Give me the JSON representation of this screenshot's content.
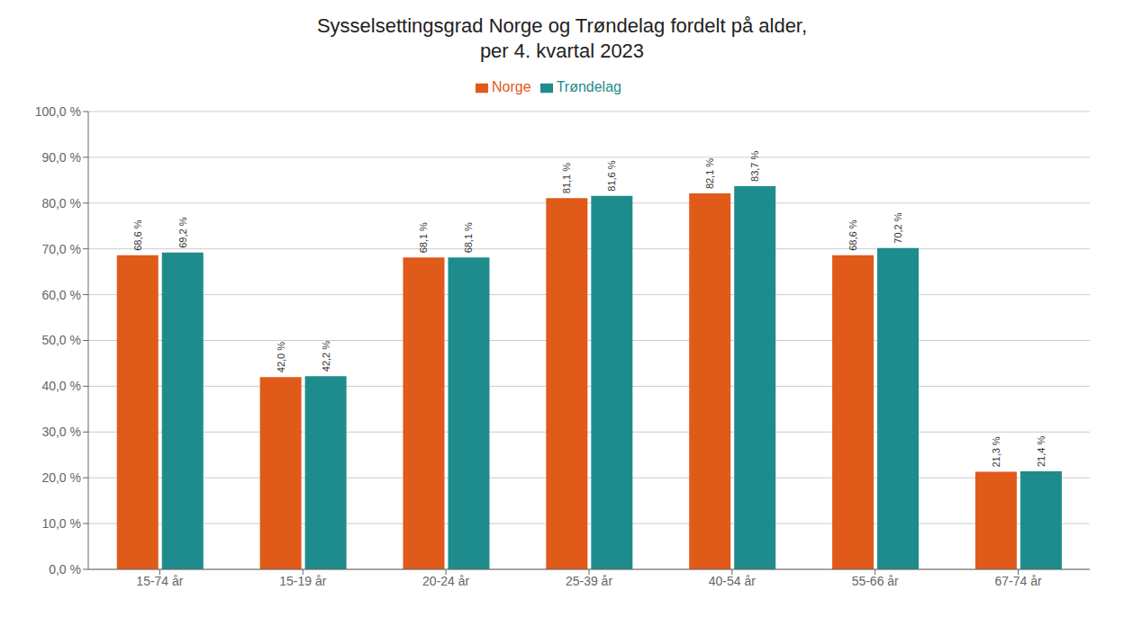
{
  "chart_data": {
    "type": "bar",
    "title": "Sysselsettingsgrad Norge og Trøndelag fordelt på alder,\nper 4. kvartal 2023",
    "categories": [
      "15-74 år",
      "15-19 år",
      "20-24 år",
      "25-39 år",
      "40-54 år",
      "55-66 år",
      "67-74 år"
    ],
    "series": [
      {
        "name": "Norge",
        "color": "#E05A1A",
        "values": [
          68.6,
          42.0,
          68.1,
          81.1,
          82.1,
          68.6,
          21.3
        ],
        "value_labels": [
          "68,6 %",
          "42,0 %",
          "68,1 %",
          "81,1 %",
          "82,1 %",
          "68,6 %",
          "21,3 %"
        ]
      },
      {
        "name": "Trøndelag",
        "color": "#1E8C8C",
        "values": [
          69.2,
          42.2,
          68.1,
          81.6,
          83.7,
          70.2,
          21.4
        ],
        "value_labels": [
          "69,2 %",
          "42,2 %",
          "68,1 %",
          "81,6 %",
          "83,7 %",
          "70,2 %",
          "21,4 %"
        ]
      }
    ],
    "ylim": [
      0,
      100
    ],
    "yticks": [
      {
        "value": 0,
        "label": "0,0 %"
      },
      {
        "value": 10,
        "label": "10,0 %"
      },
      {
        "value": 20,
        "label": "20,0 %"
      },
      {
        "value": 30,
        "label": "30,0 %"
      },
      {
        "value": 40,
        "label": "40,0 %"
      },
      {
        "value": 50,
        "label": "50,0 %"
      },
      {
        "value": 60,
        "label": "60,0 %"
      },
      {
        "value": 70,
        "label": "70,0 %"
      },
      {
        "value": 80,
        "label": "80,0 %"
      },
      {
        "value": 90,
        "label": "90,0 %"
      },
      {
        "value": 100,
        "label": "100,0 %"
      }
    ],
    "grid": true,
    "legend": "top",
    "data_labels": true
  }
}
